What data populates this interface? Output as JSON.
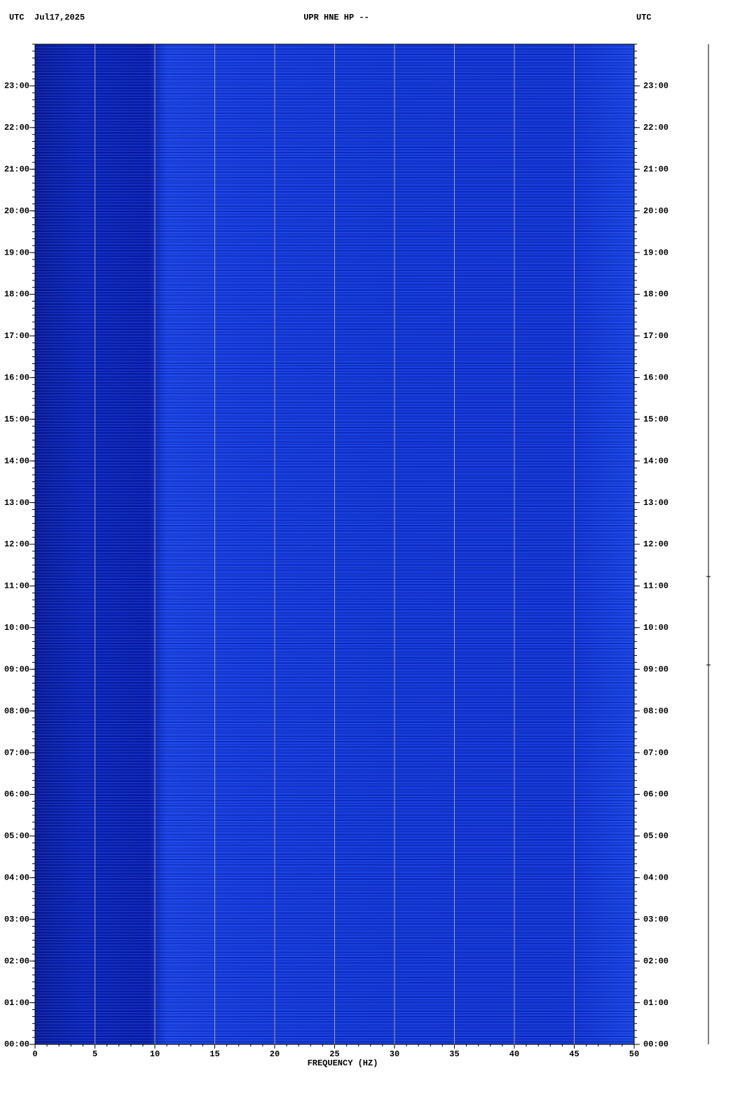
{
  "chart_data": {
    "type": "spectrogram",
    "title": "UPR HNE HP --",
    "date_label": "UTC  Jul17,2025",
    "right_label": "UTC",
    "x_label": "FREQUENCY (HZ)",
    "xlim": [
      0,
      50
    ],
    "xticks": [
      0,
      5,
      10,
      15,
      20,
      25,
      30,
      35,
      40,
      45,
      50
    ],
    "ylim": [
      0,
      24
    ],
    "yticks": [
      {
        "value": 0,
        "label": "00:00"
      },
      {
        "value": 1,
        "label": "01:00"
      },
      {
        "value": 2,
        "label": "02:00"
      },
      {
        "value": 3,
        "label": "03:00"
      },
      {
        "value": 4,
        "label": "04:00"
      },
      {
        "value": 5,
        "label": "05:00"
      },
      {
        "value": 6,
        "label": "06:00"
      },
      {
        "value": 7,
        "label": "07:00"
      },
      {
        "value": 8,
        "label": "08:00"
      },
      {
        "value": 9,
        "label": "09:00"
      },
      {
        "value": 10,
        "label": "10:00"
      },
      {
        "value": 11,
        "label": "11:00"
      },
      {
        "value": 12,
        "label": "12:00"
      },
      {
        "value": 13,
        "label": "13:00"
      },
      {
        "value": 14,
        "label": "14:00"
      },
      {
        "value": 15,
        "label": "15:00"
      },
      {
        "value": 16,
        "label": "16:00"
      },
      {
        "value": 17,
        "label": "17:00"
      },
      {
        "value": 18,
        "label": "18:00"
      },
      {
        "value": 19,
        "label": "19:00"
      },
      {
        "value": 20,
        "label": "20:00"
      },
      {
        "value": 21,
        "label": "21:00"
      },
      {
        "value": 22,
        "label": "22:00"
      },
      {
        "value": 23,
        "label": "23:00"
      }
    ],
    "grid": true,
    "grid_color": "#a0a0a0"
  }
}
